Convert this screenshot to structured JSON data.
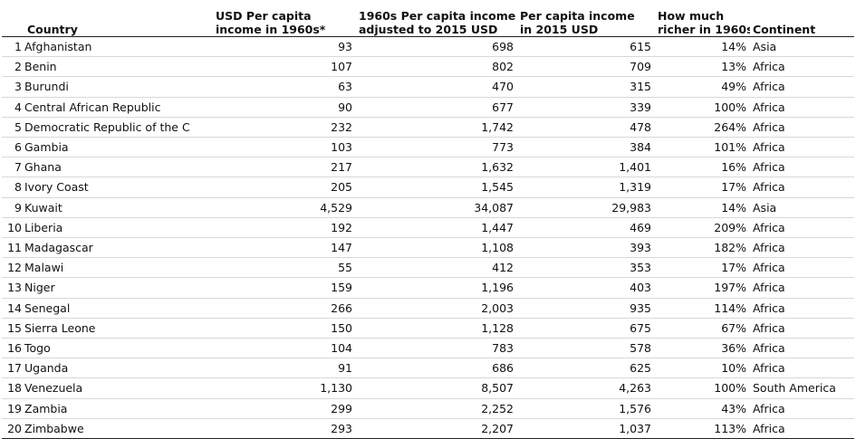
{
  "table": {
    "headers": [
      [
        "Country"
      ],
      [
        "USD Per capita",
        "income in 1960s*"
      ],
      [
        "1960s Per capita income",
        "adjusted to 2015 USD"
      ],
      [
        "Per capita income",
        "in 2015 USD"
      ],
      [
        "How much",
        "richer in 1960s"
      ],
      [
        "Continent"
      ]
    ],
    "rows": [
      [
        "1",
        "Afghanistan",
        "93",
        "698",
        "615",
        "14%",
        "Asia"
      ],
      [
        "2",
        "Benin",
        "107",
        "802",
        "709",
        "13%",
        "Africa"
      ],
      [
        "3",
        "Burundi",
        "63",
        "470",
        "315",
        "49%",
        "Africa"
      ],
      [
        "4",
        "Central African Republic",
        "90",
        "677",
        "339",
        "100%",
        "Africa"
      ],
      [
        "5",
        "Democratic Republic of the C",
        "232",
        "1,742",
        "478",
        "264%",
        "Africa"
      ],
      [
        "6",
        "Gambia",
        "103",
        "773",
        "384",
        "101%",
        "Africa"
      ],
      [
        "7",
        "Ghana",
        "217",
        "1,632",
        "1,401",
        "16%",
        "Africa"
      ],
      [
        "8",
        "Ivory Coast",
        "205",
        "1,545",
        "1,319",
        "17%",
        "Africa"
      ],
      [
        "9",
        "Kuwait",
        "4,529",
        "34,087",
        "29,983",
        "14%",
        "Asia"
      ],
      [
        "10",
        "Liberia",
        "192",
        "1,447",
        "469",
        "209%",
        "Africa"
      ],
      [
        "11",
        "Madagascar",
        "147",
        "1,108",
        "393",
        "182%",
        "Africa"
      ],
      [
        "12",
        "Malawi",
        "55",
        "412",
        "353",
        "17%",
        "Africa"
      ],
      [
        "13",
        "Niger",
        "159",
        "1,196",
        "403",
        "197%",
        "Africa"
      ],
      [
        "14",
        "Senegal",
        "266",
        "2,003",
        "935",
        "114%",
        "Africa"
      ],
      [
        "15",
        "Sierra Leone",
        "150",
        "1,128",
        "675",
        "67%",
        "Africa"
      ],
      [
        "16",
        "Togo",
        "104",
        "783",
        "578",
        "36%",
        "Africa"
      ],
      [
        "17",
        "Uganda",
        "91",
        "686",
        "625",
        "10%",
        "Africa"
      ],
      [
        "18",
        "Venezuela",
        "1,130",
        "8,507",
        "4,263",
        "100%",
        "South America"
      ],
      [
        "19",
        "Zambia",
        "299",
        "2,252",
        "1,576",
        "43%",
        "Africa"
      ],
      [
        "20",
        "Zimbabwe",
        "293",
        "2,207",
        "1,037",
        "113%",
        "Africa"
      ]
    ]
  }
}
